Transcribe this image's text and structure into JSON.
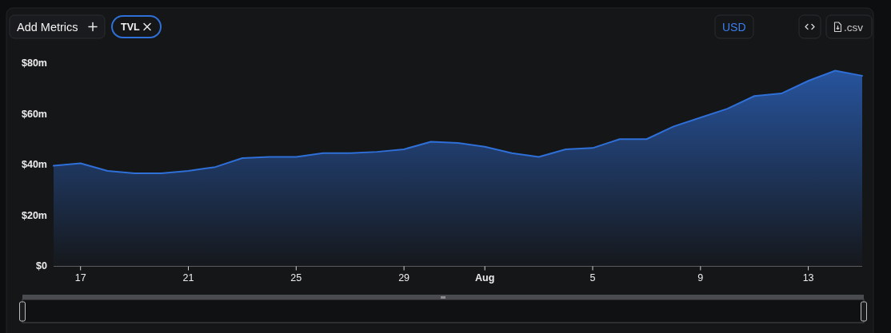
{
  "chart_data": {
    "type": "area",
    "x": [
      "--07-16",
      "--07-17",
      "--07-18",
      "--07-19",
      "--07-20",
      "--07-21",
      "--07-22",
      "--07-23",
      "--07-24",
      "--07-25",
      "--07-26",
      "--07-27",
      "--07-28",
      "--07-29",
      "--07-30",
      "--07-31",
      "--08-01",
      "--08-02",
      "--08-03",
      "--08-04",
      "--08-05",
      "--08-06",
      "--08-07",
      "--08-08",
      "--08-09",
      "--08-10",
      "--08-11",
      "--08-12",
      "--08-13",
      "--08-14",
      "--08-15"
    ],
    "series": [
      {
        "name": "TVL",
        "color": "#2f6fd8",
        "values": [
          39.5,
          40.5,
          37.5,
          36.5,
          36.5,
          37.5,
          39,
          42.5,
          43,
          43,
          44.5,
          44.5,
          45,
          46,
          49,
          48.5,
          47,
          44.5,
          43,
          46,
          46.5,
          50,
          50,
          55,
          58.5,
          62,
          67,
          68,
          73,
          77,
          75
        ]
      }
    ],
    "xlim": [
      "--07-16",
      "--08-15"
    ],
    "xticks": [
      {
        "value": "--07-17",
        "label": "17"
      },
      {
        "value": "--07-21",
        "label": "21"
      },
      {
        "value": "--07-25",
        "label": "25"
      },
      {
        "value": "--07-29",
        "label": "29"
      },
      {
        "value": "--08-01",
        "label": "Aug"
      },
      {
        "value": "--08-05",
        "label": "5"
      },
      {
        "value": "--08-09",
        "label": "9"
      },
      {
        "value": "--08-13",
        "label": "13"
      }
    ],
    "ylim": [
      0,
      80
    ],
    "yticks": [
      {
        "value": 0,
        "label": "$0"
      },
      {
        "value": 20,
        "label": "$20m"
      },
      {
        "value": 40,
        "label": "$40m"
      },
      {
        "value": 60,
        "label": "$60m"
      },
      {
        "value": 80,
        "label": "$80m"
      }
    ],
    "legend": "top left",
    "annotations": [
      "Add Metrics",
      "USD",
      ".csv"
    ]
  }
}
